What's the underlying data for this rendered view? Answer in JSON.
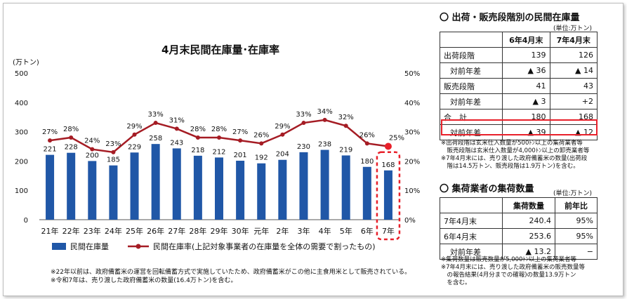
{
  "chart_data": {
    "type": "bar",
    "title": "4月末民間在庫量･在庫率",
    "ylabel": "(万トン)",
    "ylim": [
      0,
      500
    ],
    "y_ticks": [
      "0",
      "100",
      "200",
      "300",
      "400",
      "500"
    ],
    "y2lim": [
      0,
      50
    ],
    "y2_ticks": [
      "0%",
      "10%",
      "20%",
      "30%",
      "40%",
      "50%"
    ],
    "categories": [
      "21年",
      "22年",
      "23年",
      "24年",
      "25年",
      "26年",
      "27年",
      "28年",
      "29年",
      "30年",
      "元年",
      "2年",
      "3年",
      "4年",
      "5年",
      "6年",
      "7年"
    ],
    "series": [
      {
        "name": "民間在庫量",
        "type": "bar",
        "color": "#2057a7",
        "values": [
          221,
          228,
          200,
          185,
          229,
          258,
          243,
          218,
          212,
          201,
          192,
          204,
          230,
          238,
          219,
          180,
          168
        ],
        "labels": [
          "221",
          "228",
          "200",
          "185",
          "229",
          "258",
          "243",
          "218",
          "212",
          "201",
          "192",
          "204",
          "230",
          "238",
          "219",
          "180",
          "168"
        ]
      },
      {
        "name": "民間在庫率(上記対象事業者の在庫量を全体の需要で割ったもの)",
        "type": "line",
        "axis": "right",
        "color": "#a51c24",
        "values": [
          27,
          28,
          24,
          23,
          29,
          33,
          31,
          28,
          28,
          27,
          26,
          29,
          33,
          34,
          32,
          26,
          25
        ],
        "labels": [
          "27%",
          "28%",
          "24%",
          "23%",
          "29%",
          "33%",
          "31%",
          "28%",
          "28%",
          "27%",
          "26%",
          "29%",
          "33%",
          "34%",
          "32%",
          "26%",
          "25%"
        ]
      }
    ],
    "highlight_color": "#e8202a",
    "grid": false,
    "legend": "bottom"
  },
  "notes_left": [
    "※22年以前は、政府備蓄米の運営を回転備蓄方式で実施していたため、政府備蓄米がこの他に主食用米として販売されている。",
    "※令和7年は、売り渡した政府備蓄米の数量(16.4万トン)を含む。"
  ],
  "table1": {
    "title": "〇 出荷・販売段階別の民間在庫量",
    "unit": "(単位:万トン)",
    "headers": [
      "",
      "6年4月末",
      "7年4月末"
    ],
    "rows": [
      {
        "label": "出荷段階",
        "a": "139",
        "b": "126",
        "indent": false
      },
      {
        "label": "対前年差",
        "a": "▲ 36",
        "b": "▲ 14",
        "indent": true
      },
      {
        "label": "販売段階",
        "a": "41",
        "b": "43",
        "indent": false
      },
      {
        "label": "対前年差",
        "a": "▲ 3",
        "b": "+2",
        "indent": true
      },
      {
        "label": "合　計",
        "a": "180",
        "b": "168",
        "indent": false
      },
      {
        "label": "対前年差",
        "a": "▲ 39",
        "b": "▲ 12",
        "indent": true
      }
    ],
    "notes": [
      "※出荷段階は玄米仕入数量が500ﾄﾝ以上の集荷業者等",
      "　販売段階は玄米仕入数量が4,000ﾄﾝ以上の卸売業者等",
      "※7年4月末には、売り渡した政府備蓄米の数量(出荷段",
      "　階は14.5万トン、販売段階は1.9万トン)を含む。"
    ]
  },
  "table2": {
    "title": "〇 集荷業者の集荷数量",
    "unit": "(単位:万トン)",
    "headers": [
      "",
      "集荷数量",
      "前年比"
    ],
    "rows": [
      {
        "label": "7年4月末",
        "a": "240.4",
        "b": "95%",
        "indent": false
      },
      {
        "label": "6年4月末",
        "a": "253.6",
        "b": "95%",
        "indent": false
      },
      {
        "label": "対前年差",
        "a": "▲ 13.2",
        "b": "−",
        "indent": true
      }
    ],
    "notes": [
      "※集荷数量は販売数量が5,000ﾄﾝ以上の集荷業者等",
      "※7年4月末には、売り渡した政府備蓄米の販売数量等",
      "　の報告結果(4月分までの確報)の数量13.9万トン",
      "　を含む。"
    ]
  }
}
